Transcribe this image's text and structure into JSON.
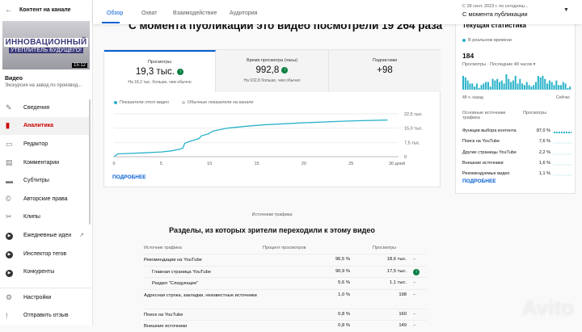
{
  "sidebar": {
    "back_title": "Контент на канале",
    "thumb_line1": "ИННОВАЦИОННЫЙ",
    "thumb_line2": "УТЕПЛИТЕЛЬ БУДУЩЕГО!",
    "duration": "15:12",
    "video_label": "Видео",
    "video_desc": "Экскурсия на завод по производ...",
    "items": [
      {
        "label": "Сведения",
        "icon": "pencil-icon",
        "glyph": "✎"
      },
      {
        "label": "Аналитика",
        "icon": "analytics-icon",
        "glyph": "▮"
      },
      {
        "label": "Редактор",
        "icon": "editor-icon",
        "glyph": "▭"
      },
      {
        "label": "Комментарии",
        "icon": "comments-icon",
        "glyph": "▤"
      },
      {
        "label": "Субтитры",
        "icon": "subtitles-icon",
        "glyph": "▬"
      },
      {
        "label": "Авторские права",
        "icon": "copyright-icon",
        "glyph": "©"
      },
      {
        "label": "Клипы",
        "icon": "clips-icon",
        "glyph": "✂"
      },
      {
        "label": "Ежедневные идеи",
        "icon": "ideas-icon",
        "glyph": "▶"
      },
      {
        "label": "Инспектор тегов",
        "icon": "tags-icon",
        "glyph": "▶"
      },
      {
        "label": "Конкуренты",
        "icon": "competitors-icon",
        "glyph": "▶"
      }
    ],
    "bottom": [
      {
        "label": "Настройки",
        "glyph": "⚙"
      },
      {
        "label": "Отправить отзыв",
        "glyph": "!"
      }
    ]
  },
  "header": {
    "tabs": [
      "Обзор",
      "Охват",
      "Взаимодействие",
      "Аудитория"
    ],
    "active_tab": 0,
    "period_sub": "С 28 сент. 2023 г. по сегодняш...",
    "period": "С момента публикации"
  },
  "main": {
    "title": "С момента публикации это видео посмотрели 19 264 раза",
    "metrics": [
      {
        "label": "Просмотры",
        "value": "19,3 тыс.",
        "up": true,
        "sub": "На 18,2 тыс. больше, чем обычно"
      },
      {
        "label": "Время просмотра (часы)",
        "value": "992,8",
        "up": true,
        "sub": "На 932,8 больше, чем обычно"
      },
      {
        "label": "Подписчики",
        "value": "+98",
        "up": false,
        "sub": ""
      }
    ],
    "legend": [
      "Показатели этого видео",
      "Обычные показатели на канале"
    ],
    "more": "ПОДРОБНЕЕ"
  },
  "chart_data": {
    "type": "line",
    "xlabel": "",
    "ylabel": "",
    "xlim": [
      0,
      30
    ],
    "ylim": [
      0,
      22500
    ],
    "x_ticks": [
      "0",
      "5",
      "10",
      "15",
      "20",
      "25",
      "30 дней"
    ],
    "y_ticks": [
      "0",
      "7,5 тыс.",
      "15,0 тыс.",
      "22,5 тыс."
    ],
    "series": [
      {
        "name": "Показатели этого видео",
        "color": "#2bb3c9",
        "x": [
          0,
          0.4,
          1,
          3,
          5,
          6,
          7,
          7.3,
          7.5,
          8,
          9,
          9.3,
          10,
          10.5,
          12,
          14,
          16,
          20,
          25,
          29
        ],
        "y": [
          0,
          1500,
          1600,
          2000,
          2500,
          3000,
          4000,
          4500,
          7000,
          8000,
          9500,
          11000,
          12000,
          13500,
          15000,
          16000,
          16800,
          17800,
          18800,
          19300
        ]
      }
    ]
  },
  "realtime": {
    "title": "Текущая статистика",
    "live": "В реальном времени",
    "value": "184",
    "sub": "Просмотры · Последние 48 часов",
    "axis_left": "48 ч. назад",
    "axis_right": "Сейчас",
    "bars": [
      9,
      8,
      6,
      4,
      4,
      2,
      4,
      1,
      3,
      4,
      5,
      5,
      2,
      7,
      6,
      7,
      5,
      6,
      4,
      10,
      7,
      5,
      6,
      9,
      4,
      7,
      4,
      3,
      5,
      3,
      2,
      3,
      5,
      9,
      8,
      9,
      7,
      4,
      6,
      5,
      3,
      6,
      3,
      3,
      5,
      4,
      1,
      2
    ],
    "src_header": "Основные источники трафика",
    "views_header": "Просмотры",
    "sources": [
      {
        "name": "Функции выбора контента",
        "pct": "87,0 %"
      },
      {
        "name": "Поиск на YouTube",
        "pct": "7,6 %"
      },
      {
        "name": "Другие страницы YouTube",
        "pct": "2,2 %"
      },
      {
        "name": "Внешние источники",
        "pct": "1,6 %"
      },
      {
        "name": "Рекомендуемые видео",
        "pct": "1,1 %"
      }
    ],
    "more": "ПОДРОБНЕЕ"
  },
  "traffic": {
    "label": "Источники трафика",
    "title": "Разделы, из которых зрители переходили к этому видео",
    "headers": [
      "Источник трафика",
      "Процент просмотров",
      "Просмотры"
    ],
    "rows": [
      {
        "name": "Рекомендации на YouTube",
        "pct": "96,5 %",
        "views": "18,6 тыс.",
        "trend": "–"
      },
      {
        "name": "Главная страница YouTube",
        "pct": "90,9 %",
        "views": "17,5 тыс.",
        "trend": "up",
        "sub": true
      },
      {
        "name": "Раздел \"Следующее\"",
        "pct": "5,6 %",
        "views": "1,1 тыс.",
        "trend": "–",
        "sub": true
      },
      {
        "name": "Адресная строка, закладки, неизвестные источники",
        "pct": "1,0 %",
        "views": "198",
        "trend": "–"
      },
      {
        "name": "Поиск на YouTube",
        "pct": "0,8 %",
        "views": "160",
        "trend": "–"
      },
      {
        "name": "Внешние источники",
        "pct": "0,8 %",
        "views": "149",
        "trend": "–"
      }
    ]
  },
  "watermark": "Avito",
  "colors": {
    "accent": "#065fd4",
    "active": "#cc0000",
    "line": "#2bb3c9",
    "up": "#0b8043"
  }
}
